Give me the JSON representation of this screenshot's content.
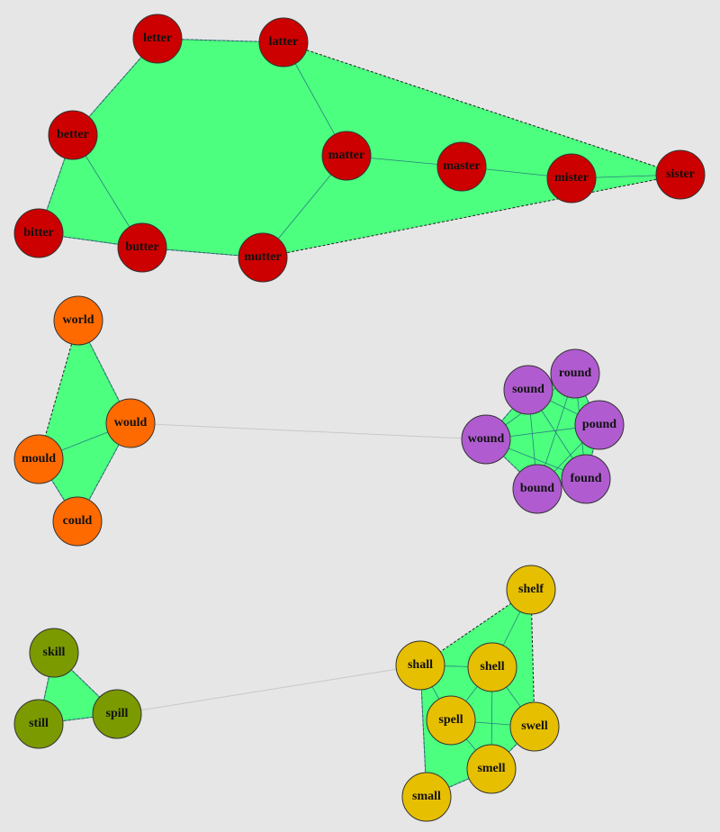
{
  "groups": [
    {
      "color": "#cc0000",
      "nodes": [
        "letter",
        "latter",
        "better",
        "matter",
        "master",
        "mister",
        "sister",
        "bitter",
        "butter",
        "mutter"
      ]
    },
    {
      "color": "#ff6a00",
      "nodes": [
        "world",
        "would",
        "mould",
        "could"
      ]
    },
    {
      "color": "#b05cd0",
      "nodes": [
        "sound",
        "round",
        "pound",
        "wound",
        "found",
        "bound"
      ]
    },
    {
      "color": "#7a9a00",
      "nodes": [
        "skill",
        "still",
        "spill"
      ]
    },
    {
      "color": "#e6bf00",
      "nodes": [
        "shelf",
        "shall",
        "shell",
        "spell",
        "swell",
        "smell",
        "small"
      ]
    }
  ]
}
